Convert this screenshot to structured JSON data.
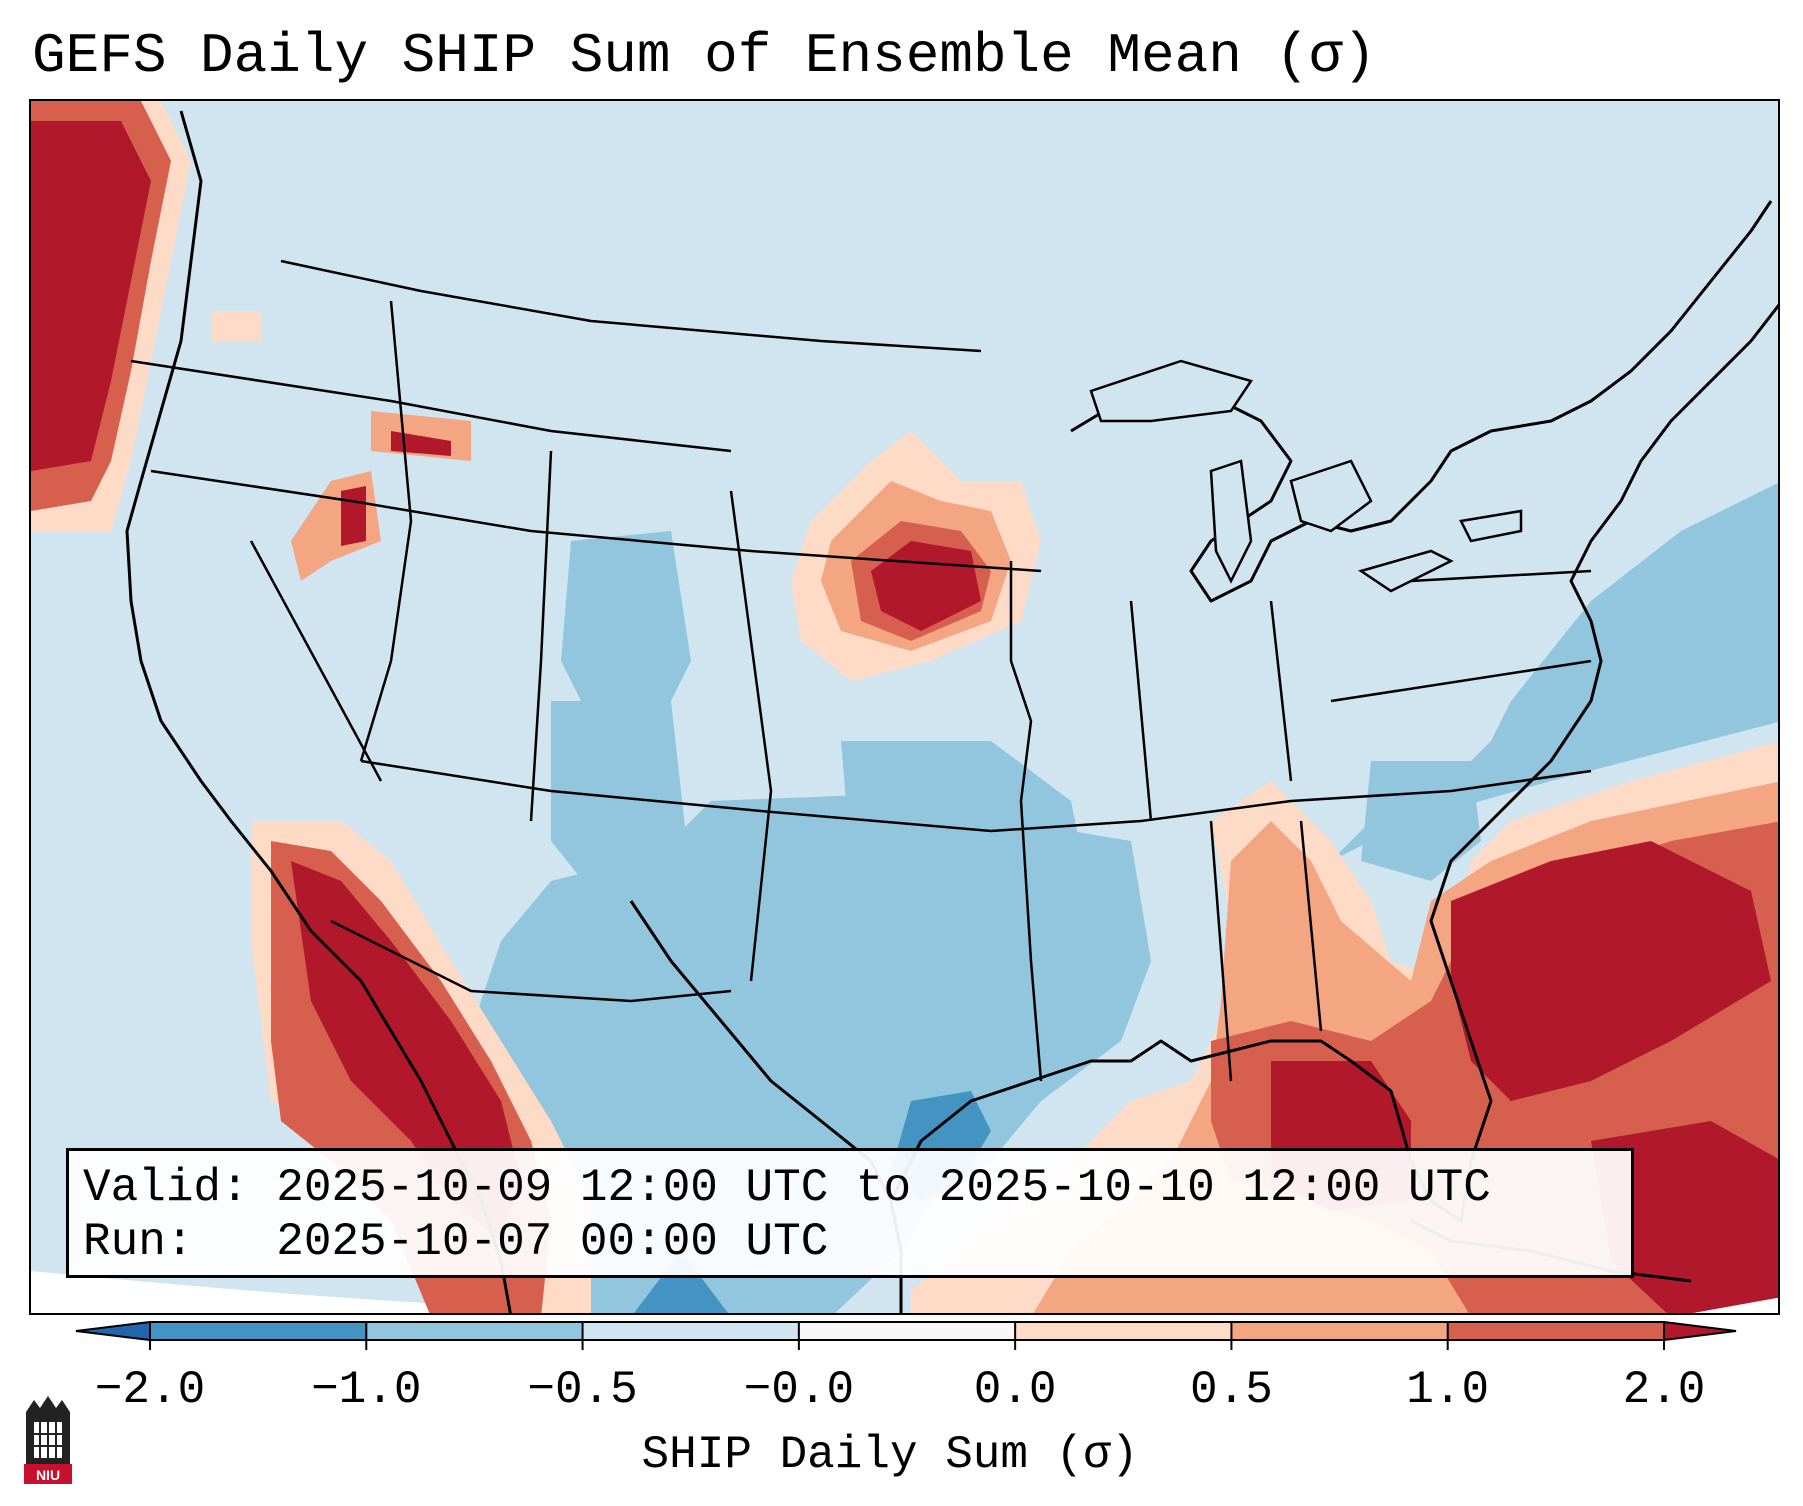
{
  "title": "GEFS Daily SHIP Sum of Ensemble Mean (σ)",
  "info": {
    "valid_line": "Valid: 2025-10-09 12:00 UTC to 2025-10-10 12:00 UTC",
    "run_line": "Run:   2025-10-07 00:00 UTC"
  },
  "colorbar": {
    "label": "SHIP Daily Sum (σ)",
    "ticks": [
      "−2.0",
      "−1.0",
      "−0.5",
      "−0.0",
      "0.0",
      "0.5",
      "1.0",
      "2.0"
    ],
    "bins": [
      {
        "range": "< -2.0",
        "color": "#2166ac"
      },
      {
        "range": "-2.0 to -1.0",
        "color": "#4393c3"
      },
      {
        "range": "-1.0 to -0.5",
        "color": "#92c5de"
      },
      {
        "range": "-0.5 to -0.0",
        "color": "#d1e5f0"
      },
      {
        "range": "-0.0 to 0.0",
        "color": "#f7f7f7"
      },
      {
        "range": "0.0 to 0.5",
        "color": "#fddbc7"
      },
      {
        "range": "0.5 to 1.0",
        "color": "#f4a582"
      },
      {
        "range": "1.0 to 2.0",
        "color": "#d6604d"
      },
      {
        "range": "> 2.0",
        "color": "#b2182b"
      }
    ]
  },
  "logo": {
    "text": "NIU"
  },
  "colors": {
    "background": "#d1e5f0",
    "ocean_mid": "#92c5de",
    "ocean_dark": "#4393c3",
    "warm_light": "#fddbc7",
    "warm_mid": "#f4a582",
    "warm_strong": "#d6604d",
    "warm_max": "#b2182b",
    "border": "#000000"
  }
}
